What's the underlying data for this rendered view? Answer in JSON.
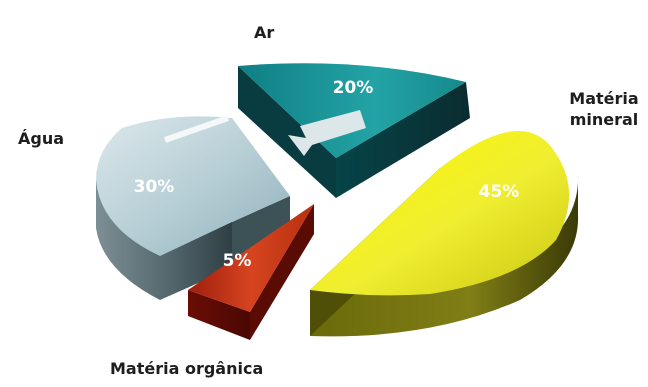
{
  "chart_data": {
    "type": "pie",
    "slices": [
      {
        "label": "Ar",
        "value": 20,
        "value_label": "20%",
        "color": "#1a9a9a"
      },
      {
        "label": "Matéria mineral",
        "value": 45,
        "value_label": "45%",
        "color": "#e8e61c"
      },
      {
        "label": "Matéria orgânica",
        "value": 5,
        "value_label": "5%",
        "color": "#c8321a"
      },
      {
        "label": "Água",
        "value": 30,
        "value_label": "30%",
        "color": "#b8d3d8"
      }
    ],
    "exploded": true,
    "three_d": true
  }
}
